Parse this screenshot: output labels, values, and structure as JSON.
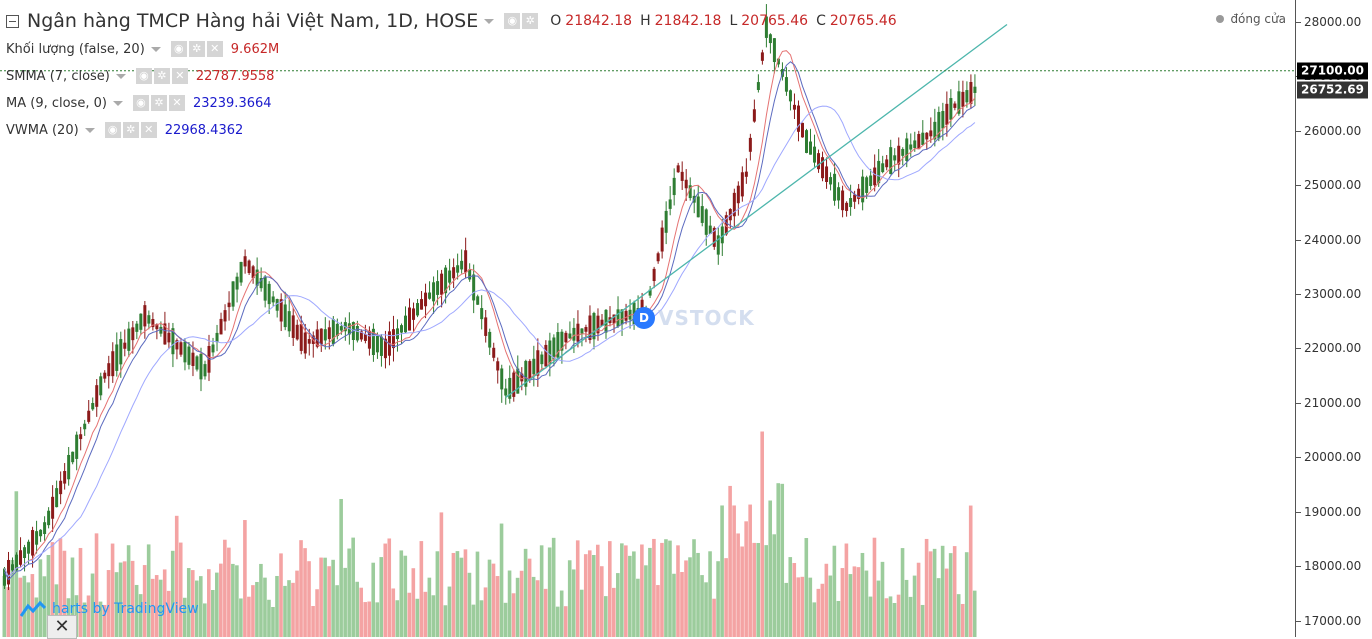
{
  "header": {
    "title": "Ngân hàng TMCP Hàng hải Việt Nam, 1D, HOSE",
    "ohlc": [
      {
        "k": "O",
        "v": "21842.18"
      },
      {
        "k": "H",
        "v": "21842.18"
      },
      {
        "k": "L",
        "v": "20765.46"
      },
      {
        "k": "C",
        "v": "20765.46"
      }
    ]
  },
  "legend_close": "đóng cửa",
  "indicators": [
    {
      "label": "Khối lượng (false, 20)",
      "value": "9.662M",
      "color": "#c62828"
    },
    {
      "label": "SMMA (7, close)",
      "value": "22787.9558",
      "color": "#c62828"
    },
    {
      "label": "MA (9, close, 0)",
      "value": "23239.3664",
      "color": "#1a1acc"
    },
    {
      "label": "VWMA (20)",
      "value": "22968.4362",
      "color": "#1a1acc"
    }
  ],
  "price_tags": [
    {
      "text": "27100.00",
      "value": 27100,
      "color": "#000000"
    },
    {
      "text": "26752.69",
      "value": 26752.69,
      "color": "#333333"
    }
  ],
  "branding": {
    "text": "harts by TradingView"
  },
  "watermark": {
    "badge": "D",
    "text": "VSTOCK"
  },
  "close_button": "✕",
  "chart_data": {
    "type": "candlestick",
    "y_ticks": [
      "28000.00",
      "27000.00",
      "26000.00",
      "25000.00",
      "24000.00",
      "23000.00",
      "22000.00",
      "21000.00",
      "20000.00",
      "19000.00",
      "18000.00",
      "17000.00"
    ],
    "ylim": [
      16700,
      28400
    ],
    "up_color": "#2e7d32",
    "down_color": "#8b1a1a",
    "volume_up_color": "#9ccc9c",
    "volume_down_color": "#f4a3a3",
    "trendline": {
      "from_index": 125,
      "from_value": 21100,
      "to_index": 250,
      "to_value": 27950
    },
    "hline": 27100
  }
}
